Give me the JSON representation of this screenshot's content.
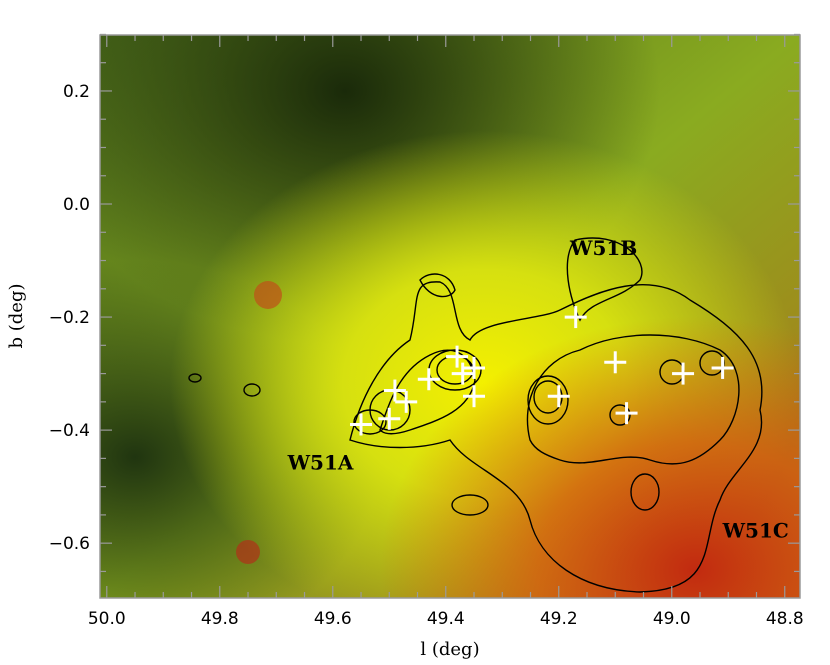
{
  "chart_data": {
    "type": "scatter",
    "description_kind": "image with contour overlay and source markers",
    "xlabel": "l (deg)",
    "ylabel": "b (deg)",
    "xlim": [
      50.012,
      48.773
    ],
    "ylim": [
      -0.697,
      0.299
    ],
    "x_ticks": [
      50.0,
      49.8,
      49.6,
      49.4,
      49.2,
      49.0,
      48.8
    ],
    "x_tick_labels": [
      "50.0",
      "49.8",
      "49.6",
      "49.4",
      "49.2",
      "49.0",
      "48.8"
    ],
    "y_ticks": [
      0.2,
      0.0,
      -0.2,
      -0.4,
      -0.6
    ],
    "y_tick_labels": [
      "0.2",
      "0.0",
      "−0.2",
      "−0.4",
      "−0.6"
    ],
    "minor_step": 0.05,
    "grid": false,
    "annotations": [
      {
        "text": "W51A",
        "l": 49.68,
        "b": -0.47
      },
      {
        "text": "W51B",
        "l": 49.18,
        "b": -0.09
      },
      {
        "text": "W51C",
        "l": 48.91,
        "b": -0.59
      }
    ],
    "series": [
      {
        "name": "sources",
        "marker": "plus",
        "color": "#ffffff",
        "points": [
          [
            49.55,
            -0.39
          ],
          [
            49.5,
            -0.38
          ],
          [
            49.49,
            -0.33
          ],
          [
            49.47,
            -0.35
          ],
          [
            49.43,
            -0.31
          ],
          [
            49.38,
            -0.27
          ],
          [
            49.37,
            -0.3
          ],
          [
            49.35,
            -0.29
          ],
          [
            49.35,
            -0.34
          ],
          [
            49.2,
            -0.34
          ],
          [
            49.17,
            -0.2
          ],
          [
            49.1,
            -0.28
          ],
          [
            49.08,
            -0.37
          ],
          [
            48.98,
            -0.3
          ],
          [
            48.91,
            -0.29
          ]
        ]
      }
    ],
    "colors": {
      "frame": "#9a9a9a",
      "contour": "#000000",
      "marker": "#ffffff"
    }
  }
}
